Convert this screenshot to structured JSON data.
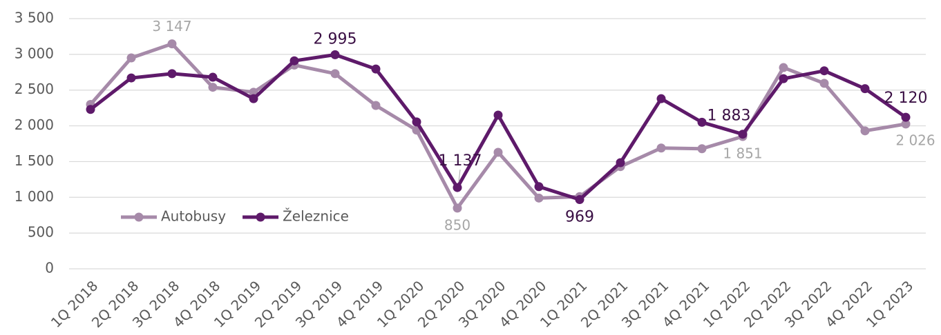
{
  "chart_data": {
    "type": "line",
    "categories": [
      "1Q 2018",
      "2Q 2018",
      "3Q 2018",
      "4Q 2018",
      "1Q 2019",
      "2Q 2019",
      "3Q 2019",
      "4Q 2019",
      "1Q 2020",
      "2Q 2020",
      "3Q 2020",
      "4Q 2020",
      "1Q 2021",
      "2Q 2021",
      "3Q 2021",
      "4Q 2021",
      "1Q 2022",
      "2Q 2022",
      "3Q 2022",
      "4Q 2022",
      "1Q 2023"
    ],
    "series": [
      {
        "name": "Autobusy",
        "color": "#a68aa9",
        "values": [
          2300,
          2950,
          3147,
          2540,
          2470,
          2850,
          2730,
          2285,
          1940,
          850,
          1630,
          990,
          1010,
          1430,
          1690,
          1680,
          1851,
          2815,
          2595,
          1930,
          2026
        ],
        "value_labels": [
          null,
          null,
          "3 147",
          null,
          null,
          null,
          null,
          null,
          null,
          "850",
          null,
          null,
          null,
          null,
          null,
          null,
          "1 851",
          null,
          null,
          null,
          "2 026"
        ]
      },
      {
        "name": "Železnice",
        "color": "#5e1a6a",
        "values": [
          2230,
          2670,
          2730,
          2680,
          2380,
          2910,
          2995,
          2795,
          2055,
          1137,
          2150,
          1150,
          969,
          1485,
          2380,
          2050,
          1883,
          2660,
          2770,
          2520,
          2120
        ],
        "value_labels": [
          null,
          null,
          null,
          null,
          null,
          null,
          "2 995",
          null,
          null,
          "1 137",
          null,
          null,
          "969",
          null,
          null,
          null,
          "1 883",
          null,
          null,
          null,
          "2 120"
        ]
      }
    ],
    "ylim": [
      0,
      3500
    ],
    "yticks": [
      0,
      500,
      {
        "value": 1000,
        "label": "1 000"
      },
      {
        "value": 1500,
        "label": "1 500"
      },
      {
        "value": 2000,
        "label": "2 000"
      },
      {
        "value": 2500,
        "label": "2 500"
      },
      {
        "value": 3000,
        "label": "3 000"
      },
      {
        "value": 3500,
        "label": "3 500"
      }
    ],
    "grid": true,
    "legend": "lower left"
  }
}
